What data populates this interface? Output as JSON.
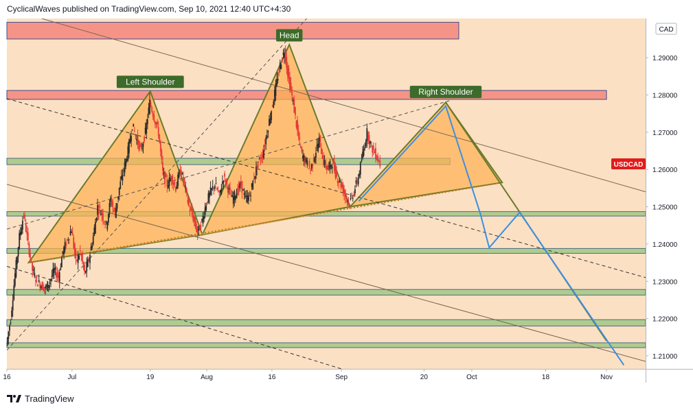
{
  "header": {
    "text": "CyclicalWaves published on TradingView.com, Sep 10, 2021 12:40 UTC+4:30"
  },
  "footer": {
    "brand": "TradingView"
  },
  "chart_data": {
    "type": "candlestick",
    "symbol": "USDCAD",
    "currency": "CAD",
    "last_price": 1.2615,
    "ylim": [
      1.2065,
      1.3005
    ],
    "y_ticks": [
      1.21,
      1.22,
      1.23,
      1.24,
      1.25,
      1.26,
      1.27,
      1.28,
      1.29
    ],
    "y_tick_labels": [
      "1.21000",
      "1.22000",
      "1.23000",
      "1.24000",
      "1.25000",
      "1.26000",
      "1.27000",
      "1.28000",
      "1.29000"
    ],
    "xlim": [
      "2021-06-16",
      "2021-11-10"
    ],
    "x_ticks": [
      {
        "date": "2021-06-16",
        "label": "16"
      },
      {
        "date": "2021-07-01",
        "label": "Jul"
      },
      {
        "date": "2021-07-19",
        "label": "19"
      },
      {
        "date": "2021-08-01",
        "label": "Aug"
      },
      {
        "date": "2021-08-16",
        "label": "16"
      },
      {
        "date": "2021-09-01",
        "label": "Sep"
      },
      {
        "date": "2021-09-20",
        "label": "20"
      },
      {
        "date": "2021-10-01",
        "label": "Oct"
      },
      {
        "date": "2021-10-18",
        "label": "18"
      },
      {
        "date": "2021-11-01",
        "label": "Nov"
      }
    ],
    "colors": {
      "background": "#fbe0c4",
      "up": "#2b2b2b",
      "down": "#e53935",
      "pattern_fill": "#ffb152",
      "pattern_stroke": "#6b7a2a",
      "resistance_zone": "#f58c80",
      "support_zone": "#a7c98a",
      "projection": "#3b8fe3",
      "label_bg": "#3d6b2a",
      "price_badge": "#e21b1b"
    },
    "price_close_path": [
      [
        "2021-06-16",
        1.213
      ],
      [
        "2021-06-17",
        1.22
      ],
      [
        "2021-06-18",
        1.232
      ],
      [
        "2021-06-19",
        1.242
      ],
      [
        "2021-06-20",
        1.248
      ],
      [
        "2021-06-21",
        1.24
      ],
      [
        "2021-06-22",
        1.233
      ],
      [
        "2021-06-23",
        1.23
      ],
      [
        "2021-06-24",
        1.229
      ],
      [
        "2021-06-25",
        1.228
      ],
      [
        "2021-06-26",
        1.23
      ],
      [
        "2021-06-27",
        1.233
      ],
      [
        "2021-06-28",
        1.231
      ],
      [
        "2021-06-29",
        1.238
      ],
      [
        "2021-06-30",
        1.241
      ],
      [
        "2021-07-01",
        1.244
      ],
      [
        "2021-07-02",
        1.235
      ],
      [
        "2021-07-03",
        1.238
      ],
      [
        "2021-07-04",
        1.232
      ],
      [
        "2021-07-05",
        1.236
      ],
      [
        "2021-07-06",
        1.242
      ],
      [
        "2021-07-07",
        1.25
      ],
      [
        "2021-07-08",
        1.248
      ],
      [
        "2021-07-09",
        1.245
      ],
      [
        "2021-07-10",
        1.252
      ],
      [
        "2021-07-11",
        1.248
      ],
      [
        "2021-07-12",
        1.255
      ],
      [
        "2021-07-13",
        1.26
      ],
      [
        "2021-07-14",
        1.265
      ],
      [
        "2021-07-15",
        1.272
      ],
      [
        "2021-07-16",
        1.268
      ],
      [
        "2021-07-17",
        1.265
      ],
      [
        "2021-07-18",
        1.27
      ],
      [
        "2021-07-19",
        1.278
      ],
      [
        "2021-07-20",
        1.274
      ],
      [
        "2021-07-21",
        1.27
      ],
      [
        "2021-07-22",
        1.259
      ],
      [
        "2021-07-23",
        1.256
      ],
      [
        "2021-07-24",
        1.258
      ],
      [
        "2021-07-25",
        1.255
      ],
      [
        "2021-07-26",
        1.26
      ],
      [
        "2021-07-27",
        1.256
      ],
      [
        "2021-07-28",
        1.25
      ],
      [
        "2021-07-29",
        1.247
      ],
      [
        "2021-07-30",
        1.243
      ],
      [
        "2021-07-31",
        1.246
      ],
      [
        "2021-08-01",
        1.251
      ],
      [
        "2021-08-02",
        1.254
      ],
      [
        "2021-08-03",
        1.256
      ],
      [
        "2021-08-04",
        1.253
      ],
      [
        "2021-08-05",
        1.258
      ],
      [
        "2021-08-06",
        1.255
      ],
      [
        "2021-08-07",
        1.252
      ],
      [
        "2021-08-08",
        1.254
      ],
      [
        "2021-08-09",
        1.256
      ],
      [
        "2021-08-10",
        1.252
      ],
      [
        "2021-08-11",
        1.253
      ],
      [
        "2021-08-12",
        1.258
      ],
      [
        "2021-08-13",
        1.262
      ],
      [
        "2021-08-14",
        1.264
      ],
      [
        "2021-08-15",
        1.27
      ],
      [
        "2021-08-16",
        1.276
      ],
      [
        "2021-08-17",
        1.282
      ],
      [
        "2021-08-18",
        1.288
      ],
      [
        "2021-08-19",
        1.292
      ],
      [
        "2021-08-20",
        1.284
      ],
      [
        "2021-08-21",
        1.278
      ],
      [
        "2021-08-22",
        1.27
      ],
      [
        "2021-08-23",
        1.264
      ],
      [
        "2021-08-24",
        1.262
      ],
      [
        "2021-08-25",
        1.26
      ],
      [
        "2021-08-26",
        1.264
      ],
      [
        "2021-08-27",
        1.268
      ],
      [
        "2021-08-28",
        1.262
      ],
      [
        "2021-08-29",
        1.26
      ],
      [
        "2021-08-30",
        1.262
      ],
      [
        "2021-08-31",
        1.258
      ],
      [
        "2021-09-01",
        1.256
      ],
      [
        "2021-09-02",
        1.253
      ],
      [
        "2021-09-03",
        1.251
      ],
      [
        "2021-09-04",
        1.254
      ],
      [
        "2021-09-05",
        1.258
      ],
      [
        "2021-09-06",
        1.264
      ],
      [
        "2021-09-07",
        1.27
      ],
      [
        "2021-09-08",
        1.266
      ],
      [
        "2021-09-09",
        1.264
      ],
      [
        "2021-09-10",
        1.2615
      ]
    ],
    "zones": [
      {
        "name": "resistance-zone-top",
        "from": "2021-06-16",
        "to": "2021-09-28",
        "y1": 1.295,
        "y2": 1.2995,
        "kind": "resistance"
      },
      {
        "name": "resistance-zone-mid",
        "from": "2021-06-16",
        "to": "2021-11-01",
        "y1": 1.2788,
        "y2": 1.2812,
        "kind": "resistance"
      },
      {
        "name": "support-zone-1",
        "from": "2021-06-16",
        "to": "2021-09-26",
        "y1": 1.2613,
        "y2": 1.263,
        "kind": "support"
      },
      {
        "name": "support-zone-2",
        "from": "2021-06-16",
        "to": "2021-11-10",
        "y1": 1.2475,
        "y2": 1.2487,
        "kind": "support"
      },
      {
        "name": "support-zone-3",
        "from": "2021-06-16",
        "to": "2021-11-10",
        "y1": 1.2375,
        "y2": 1.2388,
        "kind": "support"
      },
      {
        "name": "support-zone-4",
        "from": "2021-06-16",
        "to": "2021-11-10",
        "y1": 1.2263,
        "y2": 1.2278,
        "kind": "support"
      },
      {
        "name": "support-zone-5",
        "from": "2021-06-16",
        "to": "2021-11-10",
        "y1": 1.218,
        "y2": 1.2197,
        "kind": "support"
      },
      {
        "name": "support-zone-6",
        "from": "2021-06-16",
        "to": "2021-11-10",
        "y1": 1.2122,
        "y2": 1.2135,
        "kind": "support"
      }
    ],
    "triangles": [
      {
        "name": "left-shoulder-triangle",
        "points": [
          [
            "2021-06-21",
            1.235
          ],
          [
            "2021-07-19",
            1.281
          ],
          [
            "2021-07-31",
            1.2425
          ]
        ]
      },
      {
        "name": "head-triangle",
        "points": [
          [
            "2021-07-31",
            1.2425
          ],
          [
            "2021-08-20",
            1.2935
          ],
          [
            "2021-09-03",
            1.25
          ]
        ]
      },
      {
        "name": "right-shoulder-triangle",
        "points": [
          [
            "2021-09-03",
            1.25
          ],
          [
            "2021-09-25",
            1.278
          ],
          [
            "2021-10-08",
            1.2565
          ]
        ]
      },
      {
        "name": "rising-wedge-fill",
        "points": [
          [
            "2021-06-21",
            1.235
          ],
          [
            "2021-10-08",
            1.2565
          ],
          [
            "2021-07-31",
            1.2425
          ]
        ]
      }
    ],
    "trendlines": [
      {
        "name": "neckline",
        "from": [
          "2021-06-21",
          1.235
        ],
        "to": [
          "2021-10-08",
          1.2565
        ],
        "style": "dotted",
        "color": "#c07a1a"
      },
      {
        "name": "pattern-downtrend",
        "from": [
          "2021-09-25",
          1.278
        ],
        "to": [
          "2021-11-01",
          1.214
        ],
        "style": "solid",
        "color": "#6b7a2a"
      },
      {
        "name": "upper-channel",
        "from": [
          "2021-06-24",
          1.3005
        ],
        "to": [
          "2021-11-10",
          1.254
        ],
        "style": "solid",
        "color": "#7a6550"
      },
      {
        "name": "lower-channel",
        "from": [
          "2021-06-16",
          1.256
        ],
        "to": [
          "2021-11-10",
          1.2085
        ],
        "style": "solid",
        "color": "#7a6550"
      },
      {
        "name": "mid-dashed-1",
        "from": [
          "2021-06-16",
          1.279
        ],
        "to": [
          "2021-11-10",
          1.231
        ],
        "style": "dashed",
        "color": "#333333"
      },
      {
        "name": "mid-dashed-2",
        "from": [
          "2021-06-16",
          1.234
        ],
        "to": [
          "2021-09-01",
          1.2065
        ],
        "style": "dashed",
        "color": "#333333"
      },
      {
        "name": "rising-dashed",
        "from": [
          "2021-06-16",
          1.2115
        ],
        "to": [
          "2021-08-24",
          1.3005
        ],
        "style": "dashed",
        "color": "#555555"
      },
      {
        "name": "rising-dashed-2",
        "from": [
          "2021-06-16",
          1.244
        ],
        "to": [
          "2021-09-26",
          1.2785
        ],
        "style": "dashed",
        "color": "#555555"
      }
    ],
    "projection_path": [
      [
        "2021-09-05",
        1.2515
      ],
      [
        "2021-09-25",
        1.277
      ],
      [
        "2021-10-03",
        1.248
      ],
      [
        "2021-10-05",
        1.239
      ],
      [
        "2021-10-12",
        1.2485
      ],
      [
        "2021-11-05",
        1.2075
      ]
    ],
    "labels": [
      {
        "text": "Left Shoulder",
        "date": "2021-07-19",
        "price": 1.2835
      },
      {
        "text": "Head",
        "date": "2021-08-20",
        "price": 1.296
      },
      {
        "text": "Right Shoulder",
        "date": "2021-09-25",
        "price": 1.2808
      }
    ]
  }
}
